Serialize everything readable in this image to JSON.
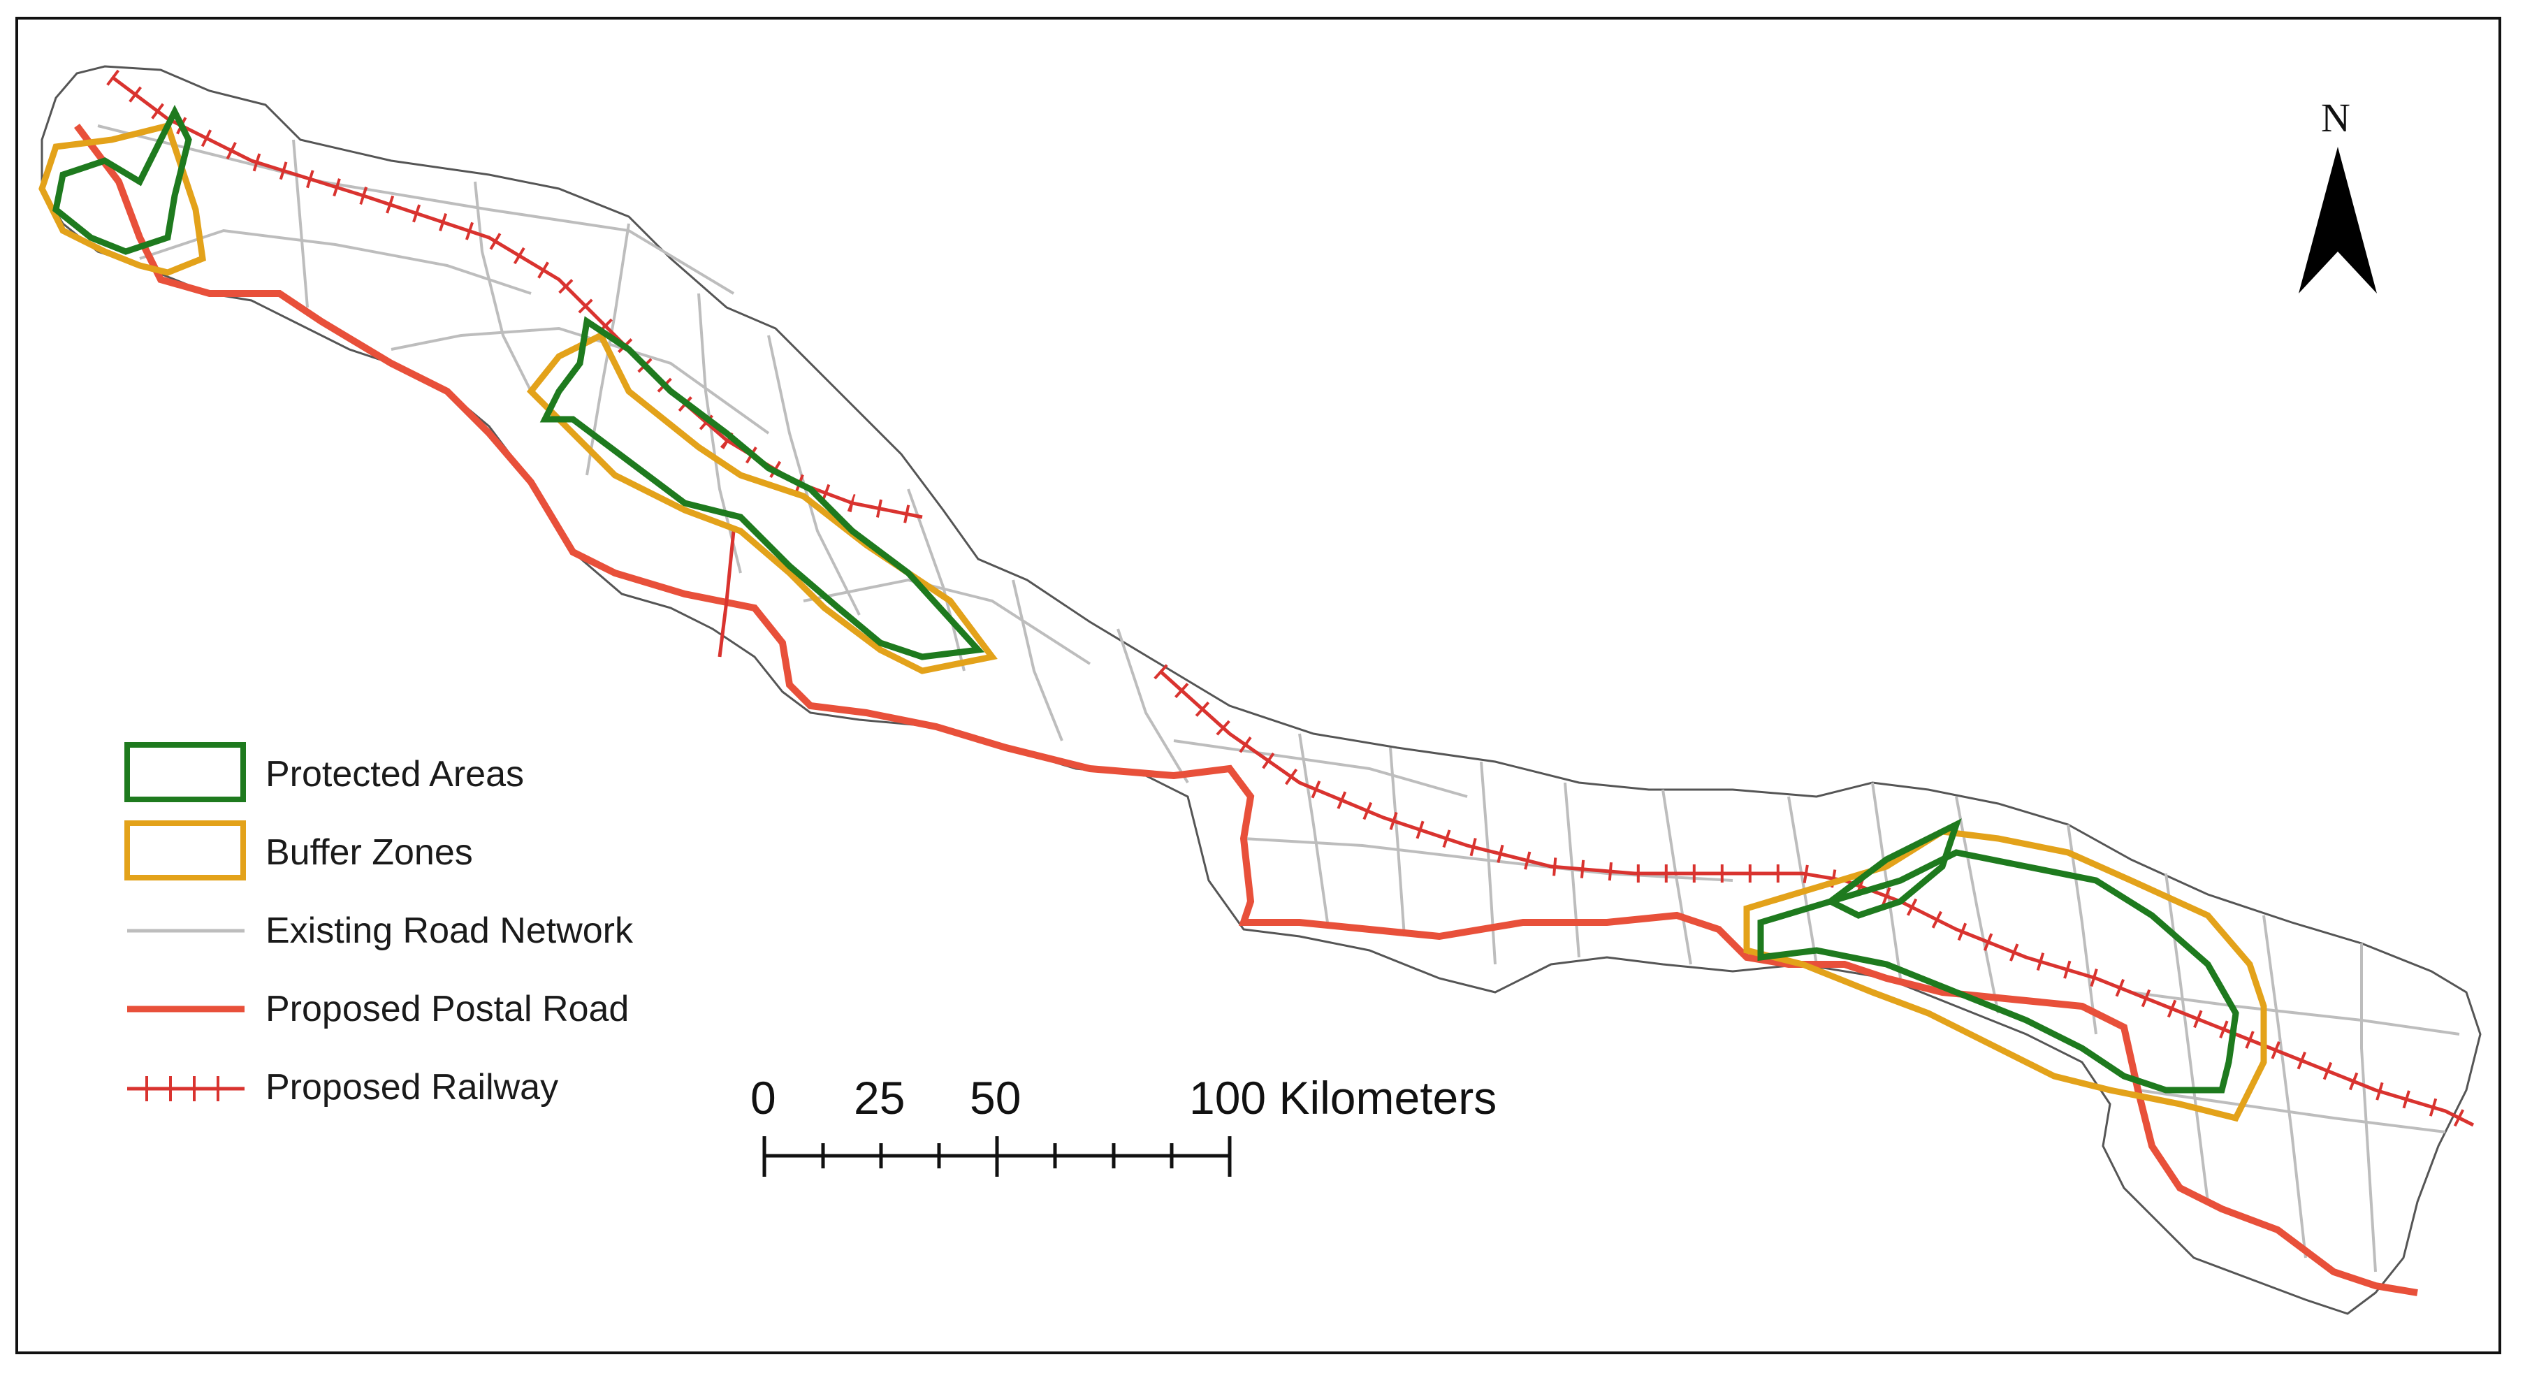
{
  "map": {
    "north_label": "N",
    "legend": {
      "items": [
        {
          "id": "protected",
          "label": "Protected Areas",
          "symbol": "box",
          "color": "#1e7a1e"
        },
        {
          "id": "buffer",
          "label": "Buffer Zones",
          "symbol": "box",
          "color": "#e3a21a"
        },
        {
          "id": "roads",
          "label": "Existing Road Network",
          "symbol": "line",
          "color": "#bdbdbd"
        },
        {
          "id": "postal",
          "label": "Proposed Postal Road",
          "symbol": "line",
          "color": "#e8503a"
        },
        {
          "id": "railway",
          "label": "Proposed Railway",
          "symbol": "rail",
          "color": "#d9332f"
        }
      ]
    },
    "scale_bar": {
      "labels": [
        "0",
        "25",
        "50",
        "100 Kilometers"
      ]
    },
    "colors": {
      "boundary": "#555555",
      "frame": "#111111"
    }
  }
}
